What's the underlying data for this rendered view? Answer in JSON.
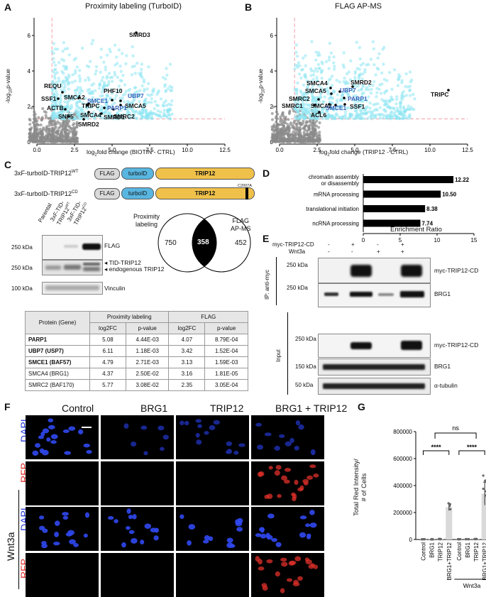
{
  "panels": [
    "A",
    "B",
    "C",
    "D",
    "E",
    "F",
    "G"
  ],
  "volcanoA": {
    "title": "Proximity labeling (TurboID)",
    "xlabel_pre": "log",
    "xlabel_sub": "2",
    "xlabel_post": "fold change (BIOTIN - CTRL)",
    "ylabel_pre": "-log",
    "ylabel_sub": "10",
    "ylabel_post": "p-value",
    "xticks": [
      "0.0",
      "2.5",
      "5.0",
      "7.5",
      "10.0",
      "12.5"
    ],
    "yticks": [
      "0",
      "2",
      "4",
      "6"
    ],
    "black_labels": [
      "SMRD3",
      "REQU",
      "TRIPC",
      "PHF10",
      "SSF1",
      "SMCA2",
      "ACTB",
      "SMCA5",
      "SNF5",
      "SMCA4",
      "SMRD1",
      "SMRC2",
      "SMRD2"
    ],
    "blue_labels": [
      "UBP7",
      "SMCE1",
      "PARP1"
    ]
  },
  "volcanoB": {
    "title": "FLAG AP-MS",
    "xlabel_pre": "log",
    "xlabel_sub": "2",
    "xlabel_post": "fold change (TRIP12  - CTRL)",
    "ylabel_pre": "-log",
    "ylabel_sub": "10",
    "ylabel_post": "p-value",
    "xticks": [
      "0.0",
      "2.5",
      "5.0",
      "7.5",
      "10.0",
      "12.5"
    ],
    "yticks": [
      "0",
      "2",
      "4",
      "6"
    ],
    "black_labels": [
      "SMCA4",
      "SMRD2",
      "SMCA5",
      "SMRC2",
      "SMRC1",
      "SMCA2",
      "SSF1",
      "ACL6",
      "TRIPC"
    ],
    "blue_labels": [
      "UBP7",
      "PARP1",
      "SMCE1"
    ]
  },
  "panelC": {
    "construct_wt_pre": "3xF-turboID-TRIP12",
    "construct_wt_sup": "WT",
    "construct_cd_pre": "3xF-turboID-TRIP12",
    "construct_cd_sup": "CD",
    "box_flag": "FLAG",
    "box_turbo": "turboID",
    "box_trip": "TRIP12",
    "mutation": "C2007A",
    "lanes": [
      "Parental",
      "3xF-TID-TRIP12WT",
      "3xF-TID-TRIP12CD"
    ],
    "blot_ladder": [
      "250 kDa",
      "250 kDa",
      "100 kDa"
    ],
    "blot_labels": [
      "FLAG",
      "TID-TRIP12",
      "endogenous TRIP12",
      "Vinculin"
    ],
    "venn": {
      "left_title": "Proximity\nlabeling",
      "right_title": "FLAG\nAP-MS",
      "left": "750",
      "overlap": "358",
      "right": "452"
    },
    "table": {
      "group_headers": [
        "Protein (Gene)",
        "Proximity labeling",
        "FLAG"
      ],
      "sub_headers": [
        "log2FC",
        "p-value",
        "log2FC",
        "p-value"
      ],
      "rows": [
        {
          "gene": "PARP1",
          "bold": true,
          "v": [
            "5.08",
            "4.44E-03",
            "4.07",
            "8.79E-04"
          ]
        },
        {
          "gene": "UBP7 (USP7)",
          "bold": true,
          "v": [
            "6.11",
            "1.18E-03",
            "3.42",
            "1.52E-04"
          ]
        },
        {
          "gene": "SMCE1 (BAF57)",
          "bold": true,
          "v": [
            "4.79",
            "2.71E-03",
            "3.13",
            "1.59E-03"
          ]
        },
        {
          "gene": "SMCA4 (BRG1)",
          "bold": false,
          "v": [
            "4.37",
            "2.50E-02",
            "3.16",
            "1.81E-05"
          ]
        },
        {
          "gene": "SMRC2 (BAF170)",
          "bold": false,
          "v": [
            "5.77",
            "3.08E-02",
            "2.35",
            "3.05E-04"
          ]
        }
      ]
    }
  },
  "chart_data": [
    {
      "type": "bar",
      "orientation": "horizontal",
      "categories": [
        "chromatin assembly or disassembly",
        "mRNA processing",
        "translational initiation",
        "ncRNA processing"
      ],
      "values": [
        12.22,
        10.5,
        8.38,
        7.74
      ],
      "value_labels": [
        "12.22",
        "10.50",
        "8.38",
        "7.74"
      ],
      "xlabel": "Enrichment Ratio",
      "xlim": [
        0,
        15
      ],
      "xticks": [
        "0",
        "5",
        "10",
        "15"
      ],
      "color": "#000000"
    },
    {
      "type": "bar",
      "categories": [
        "Control",
        "BRG1",
        "TRIP12",
        "BRG1+TRIP12",
        "Control",
        "BRG1",
        "TRIP12",
        "BRG1+TRIP12"
      ],
      "group_label": "Wnt3a",
      "values": [
        2000,
        2000,
        3000,
        240000,
        2000,
        2000,
        3000,
        340000
      ],
      "errors": [
        1000,
        1000,
        1000,
        25000,
        1000,
        1000,
        1000,
        85000
      ],
      "ylabel": "Total Red Intensity/\n# of Cells",
      "ylim": [
        0,
        800000
      ],
      "yticks": [
        "0",
        "200000",
        "400000",
        "600000",
        "800000"
      ],
      "significance": [
        "****",
        "****",
        "ns"
      ],
      "color": "#d9d9d9"
    }
  ],
  "panelE": {
    "row_labels": [
      "myc-TRIP12-CD",
      "Wnt3a"
    ],
    "lane_marks": [
      [
        "-",
        "+",
        "-",
        "+"
      ],
      [
        "-",
        "-",
        "+",
        "+"
      ]
    ],
    "section_labels": [
      "IP: anti-myc",
      "Input"
    ],
    "ladder": [
      "250 kDa",
      "250 kDa",
      "250 kDa",
      "150 kDa",
      "50 kDa"
    ],
    "band_labels": [
      "myc-TRIP12-CD",
      "BRG1",
      "myc-TRIP12-CD",
      "BRG1",
      "α-tubulin"
    ]
  },
  "panelF": {
    "columns": [
      "Control",
      "BRG1",
      "TRIP12",
      "BRG1 + TRIP12"
    ],
    "row_labels": [
      "DAPI",
      "RFP",
      "DAPI",
      "RFP"
    ],
    "side_label": "Wnt3a",
    "colors": {
      "dapi": "#2438d8",
      "rfp": "#e0302a"
    }
  },
  "colors": {
    "cyan": "#8ee6f2",
    "blue_label": "#3a62b8",
    "threshold": "#f2a0a8",
    "grey": "#8a8a8a"
  }
}
